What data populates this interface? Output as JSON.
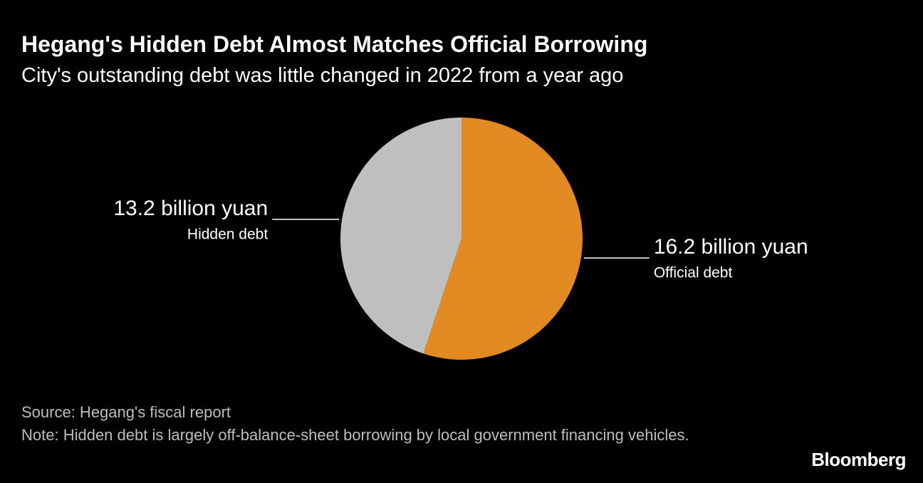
{
  "chart_data": {
    "type": "pie",
    "title": "Hegang's Hidden Debt Almost Matches Official Borrowing",
    "subtitle": "City's outstanding debt was little changed in 2022 from a year ago",
    "categories": [
      "Official debt",
      "Hidden debt"
    ],
    "values": [
      16.2,
      13.2
    ],
    "value_labels": [
      "16.2 billion yuan",
      "13.2 billion yuan"
    ],
    "colors": [
      "#e08a21",
      "#bfbfbf"
    ],
    "source": "Source: Hegang's fiscal report",
    "note": "Note: Hidden debt is largely off-balance-sheet borrowing by local government financing vehicles."
  },
  "brand": "Bloomberg"
}
